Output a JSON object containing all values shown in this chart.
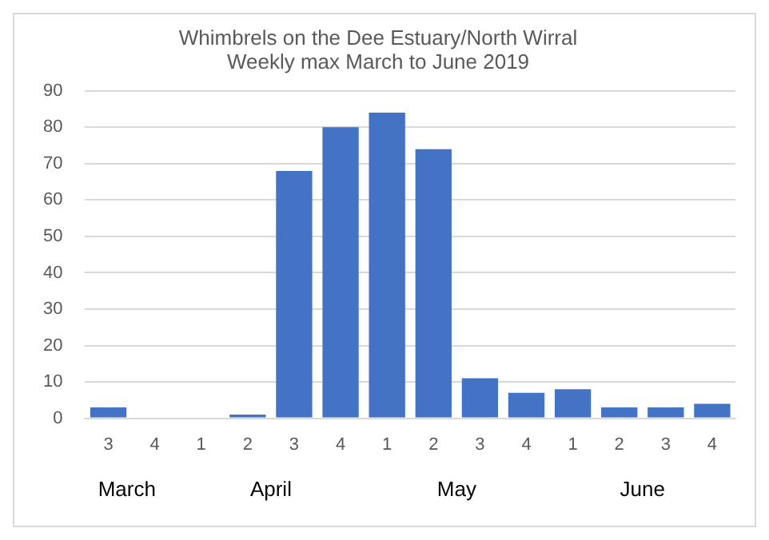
{
  "chart_data": {
    "type": "bar",
    "title": [
      "Whimbrels on the Dee Estuary/North Wirral",
      "Weekly max March to June 2019"
    ],
    "categories": [
      "3",
      "4",
      "1",
      "2",
      "3",
      "4",
      "1",
      "2",
      "3",
      "4",
      "1",
      "2",
      "3",
      "4"
    ],
    "values": [
      3,
      0,
      0,
      1,
      68,
      80,
      84,
      74,
      11,
      7,
      8,
      3,
      3,
      4
    ],
    "color": "#4472c4",
    "ylim": [
      0,
      90
    ],
    "yticks": [
      0,
      10,
      20,
      30,
      40,
      50,
      60,
      70,
      80,
      90
    ],
    "grid": "y",
    "legend": false,
    "annotations": [
      "March",
      "April",
      "May",
      "June"
    ]
  }
}
